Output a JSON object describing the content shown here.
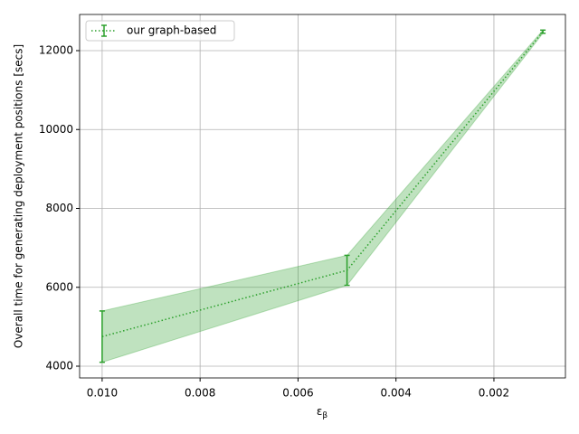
{
  "chart_data": {
    "type": "line",
    "xlabel": {
      "base": "ε",
      "sub": "β"
    },
    "ylabel": "Overall time for generating deployment positions [secs]",
    "x": [
      0.01,
      0.005,
      0.001
    ],
    "series": [
      {
        "name": "our graph-based",
        "color": "#2ca02c",
        "values": [
          4750,
          6430,
          12480
        ],
        "errors": [
          650,
          380,
          40
        ]
      }
    ],
    "xlim": [
      0.01046,
      0.00054
    ],
    "xticks": [
      {
        "value": 0.01,
        "label": "0.010"
      },
      0.008,
      0.006,
      0.004,
      0.002
    ],
    "ylim": [
      3702,
      12917
    ],
    "yticks": [
      4000,
      6000,
      8000,
      10000,
      12000
    ],
    "grid": true,
    "legend": "upper left"
  }
}
